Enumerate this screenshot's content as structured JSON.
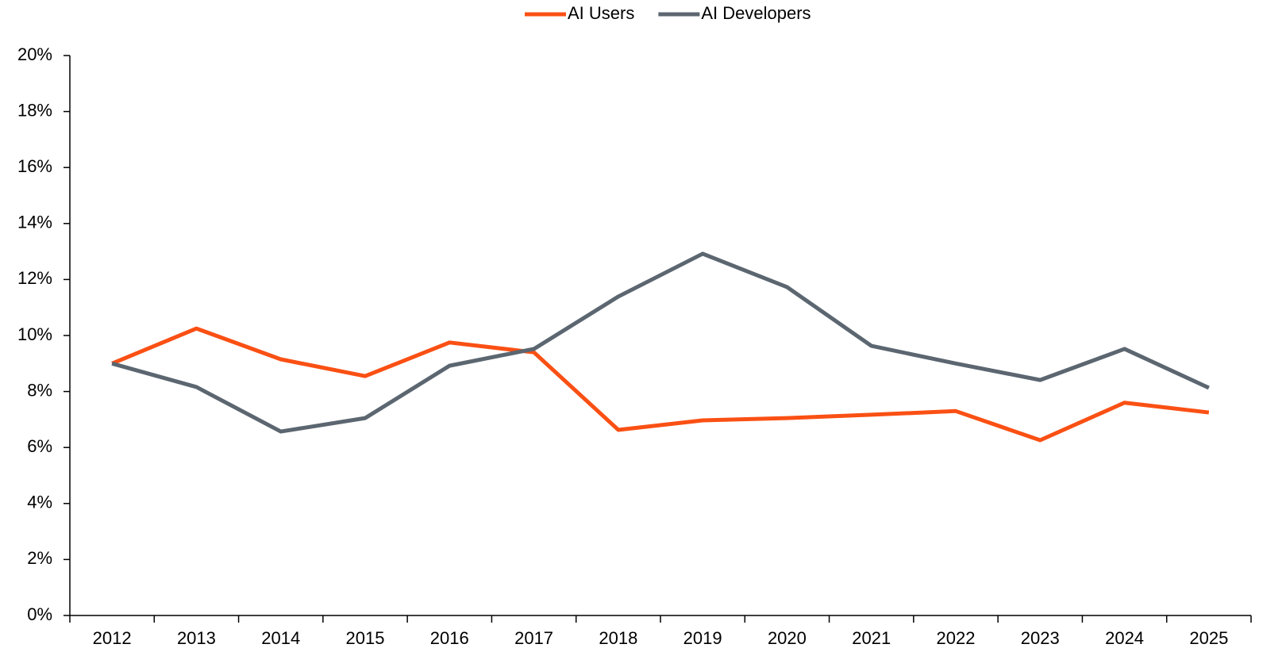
{
  "chart_data": {
    "type": "line",
    "categories": [
      "2012",
      "2013",
      "2014",
      "2015",
      "2016",
      "2017",
      "2018",
      "2019",
      "2020",
      "2021",
      "2022",
      "2023",
      "2024",
      "2025"
    ],
    "series": [
      {
        "name": "AI Users",
        "color": "#fa5014",
        "values": [
          9.0,
          10.25,
          9.15,
          8.55,
          9.75,
          9.4,
          6.63,
          6.97,
          7.05,
          7.17,
          7.3,
          6.26,
          7.6,
          7.25
        ]
      },
      {
        "name": "AI Developers",
        "color": "#5b6670",
        "values": [
          9.0,
          8.16,
          6.57,
          7.05,
          8.92,
          9.52,
          11.39,
          12.92,
          11.73,
          9.63,
          9.0,
          8.41,
          9.52,
          8.13
        ]
      }
    ],
    "ylim": [
      0,
      20
    ],
    "yticks": [
      {
        "value": 0,
        "label": "0%"
      },
      {
        "value": 2,
        "label": "2%"
      },
      {
        "value": 4,
        "label": "4%"
      },
      {
        "value": 6,
        "label": "6%"
      },
      {
        "value": 8,
        "label": "8%"
      },
      {
        "value": 10,
        "label": "10%"
      },
      {
        "value": 12,
        "label": "12%"
      },
      {
        "value": 14,
        "label": "14%"
      },
      {
        "value": 16,
        "label": "16%"
      },
      {
        "value": 18,
        "label": "18%"
      },
      {
        "value": 20,
        "label": "20%"
      }
    ],
    "grid": false,
    "legend": "top"
  }
}
